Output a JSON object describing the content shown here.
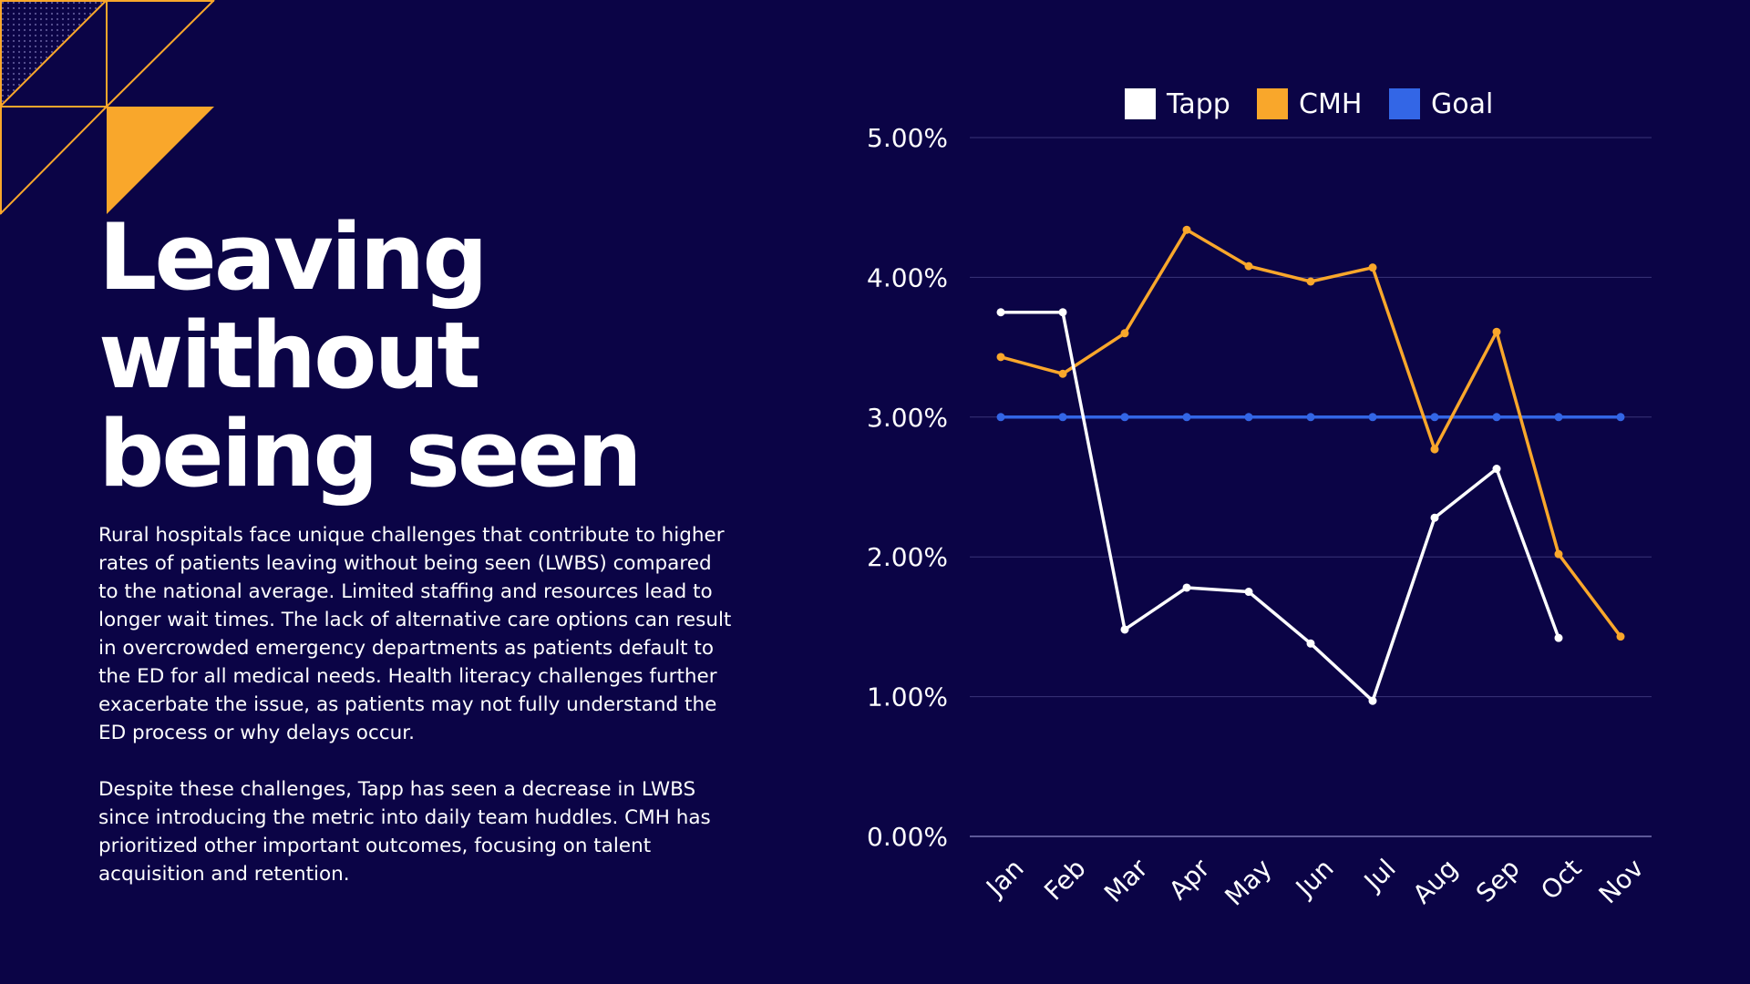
{
  "slide": {
    "title_lines": [
      "Leaving",
      "without",
      "being seen"
    ],
    "paragraphs": [
      "Rural hospitals face unique challenges that contribute to higher rates of patients leaving without being seen (LWBS) compared to the national average. Limited staffing and resources lead to longer wait times. The lack of alternative care options can result in overcrowded emergency departments as patients default to the ED for all medical needs. Health literacy challenges further exacerbate the issue, as patients may not fully understand the ED process or why delays occur.",
      "Despite these challenges, Tapp has seen a decrease in LWBS since introducing the metric into daily team huddles. CMH has prioritized other important outcomes, focusing on talent acquisition and retention."
    ]
  },
  "colors": {
    "background": "#0b0446",
    "accent_orange": "#f9a72b",
    "text": "#ffffff",
    "gridline": "#3a3478"
  },
  "chart_data": {
    "type": "line",
    "categories": [
      "Jan",
      "Feb",
      "Mar",
      "Apr",
      "May",
      "Jun",
      "Jul",
      "Aug",
      "Sep",
      "Oct",
      "Nov"
    ],
    "series": [
      {
        "name": "Tapp",
        "color": "#ffffff",
        "values": [
          3.75,
          3.75,
          1.48,
          1.78,
          1.75,
          1.38,
          0.97,
          2.28,
          2.63,
          1.42,
          null
        ]
      },
      {
        "name": "CMH",
        "color": "#f9a72b",
        "values": [
          3.43,
          3.31,
          3.6,
          4.34,
          4.08,
          3.97,
          4.07,
          2.77,
          3.61,
          2.02,
          1.43
        ]
      },
      {
        "name": "Goal",
        "color": "#3366e6",
        "values": [
          3.0,
          3.0,
          3.0,
          3.0,
          3.0,
          3.0,
          3.0,
          3.0,
          3.0,
          3.0,
          3.0
        ]
      }
    ],
    "y_ticks": [
      "5.00%",
      "4.00%",
      "3.00%",
      "2.00%",
      "1.00%",
      "0.00%"
    ],
    "ylim": [
      0,
      5
    ],
    "legend_position": "top-center",
    "grid": true
  }
}
